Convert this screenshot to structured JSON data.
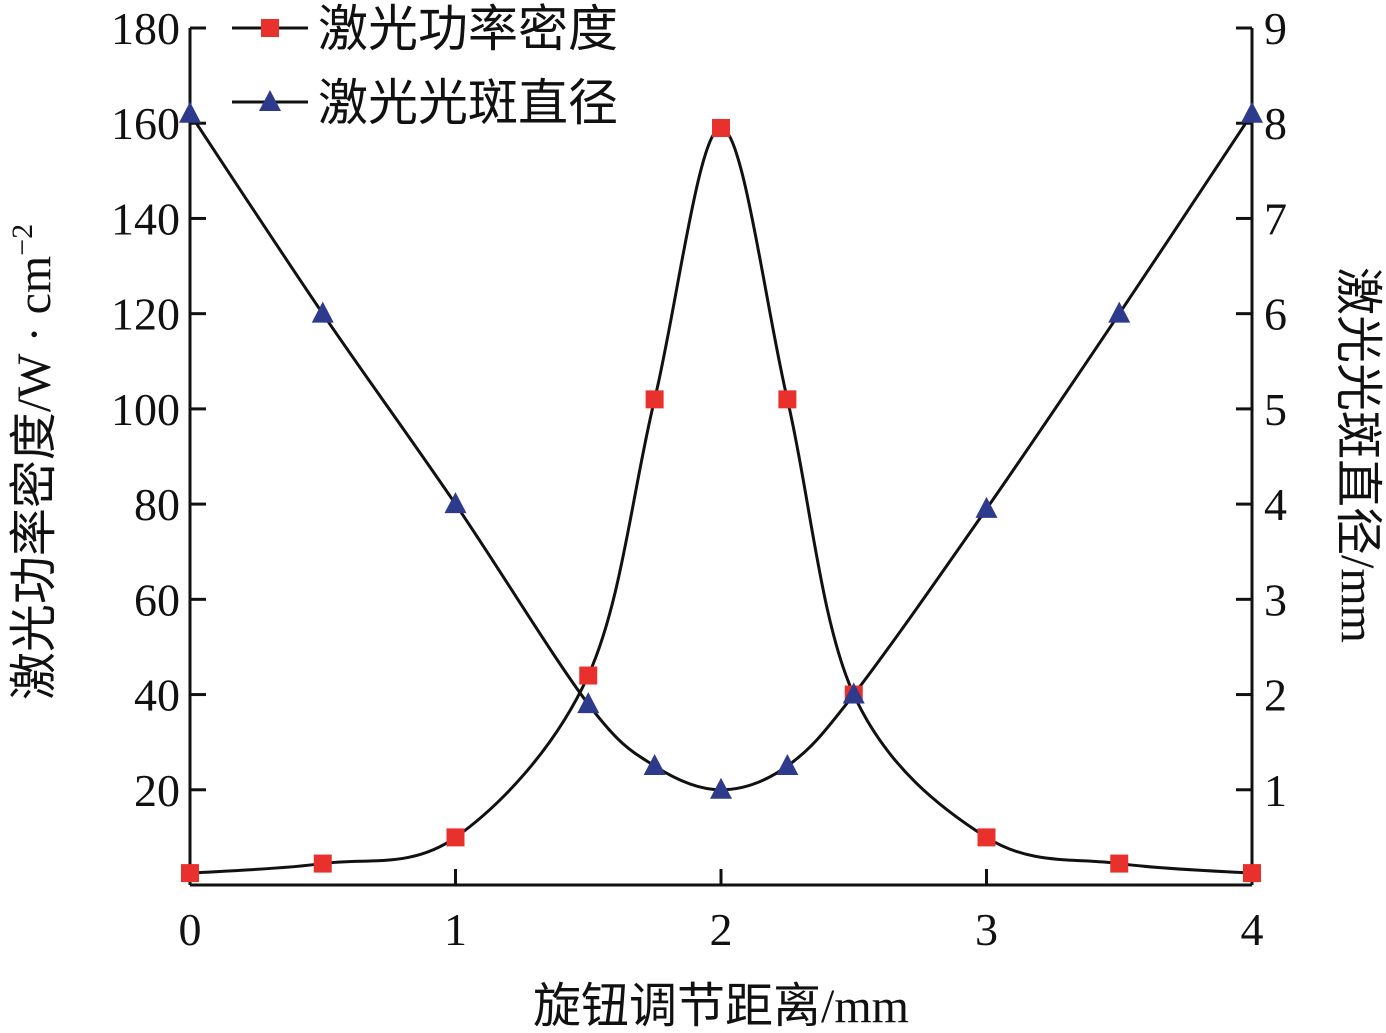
{
  "chart_data": {
    "type": "line",
    "xlabel": "旋钮调节距离/mm",
    "ylabel_left": "激光功率密度/W · cm",
    "ylabel_left_sup": "−2",
    "ylabel_right": "激光光斑直径/mm",
    "x_ticks": [
      "0",
      "1",
      "2",
      "3",
      "4"
    ],
    "y_left_ticks": [
      "20",
      "40",
      "60",
      "80",
      "100",
      "120",
      "140",
      "160",
      "180"
    ],
    "y_right_ticks": [
      "1",
      "2",
      "3",
      "4",
      "5",
      "6",
      "7",
      "8",
      "9"
    ],
    "xlim": [
      0,
      4
    ],
    "ylim_left": [
      0,
      180
    ],
    "ylim_right": [
      0,
      9
    ],
    "legend_position": "top-left",
    "series": [
      {
        "name": "激光功率密度",
        "axis": "left",
        "marker": "square",
        "color": "#e8302c",
        "x": [
          0,
          0.5,
          1,
          1.5,
          1.75,
          2,
          2.25,
          2.5,
          3,
          3.5,
          4
        ],
        "y": [
          2.5,
          4.5,
          10,
          44,
          102,
          159,
          102,
          40,
          10,
          4.5,
          2.5
        ]
      },
      {
        "name": "激光光斑直径",
        "axis": "right",
        "marker": "triangle",
        "color": "#2e3a8c",
        "x": [
          0,
          0.5,
          1,
          1.5,
          1.75,
          2,
          2.25,
          2.5,
          3,
          3.5,
          4
        ],
        "y": [
          8.1,
          6.0,
          4.0,
          1.9,
          1.25,
          1.0,
          1.25,
          2.0,
          3.95,
          6.0,
          8.1
        ]
      }
    ]
  }
}
